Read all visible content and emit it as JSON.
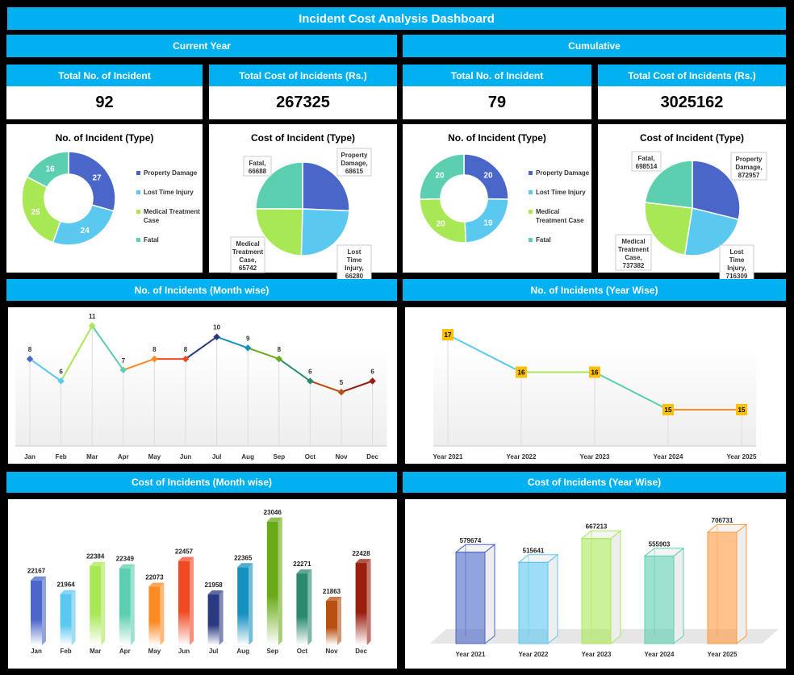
{
  "title": "Incident Cost Analysis Dashboard",
  "sections": {
    "current": "Current Year",
    "cumulative": "Cumulative",
    "month_count": "No. of Incidents (Month wise)",
    "year_count": "No. of Incidents (Year Wise)",
    "month_cost": "Cost of Incidents (Month wise)",
    "year_cost": "Cost of Incidents (Year Wise)"
  },
  "colors": {
    "header": "#00b0f0",
    "property_damage": "#4a66c8",
    "lost_time_injury": "#5bc8f0",
    "medical_treatment_case": "#a9e855",
    "fatal": "#5ccfb0"
  },
  "kpis": [
    {
      "label": "Total No. of Incident",
      "value": "92"
    },
    {
      "label": "Total Cost of Incidents (Rs.)",
      "value": "267325"
    },
    {
      "label": "Total No. of Incident",
      "value": "79"
    },
    {
      "label": "Total Cost of Incidents (Rs.)",
      "value": "3025162"
    }
  ],
  "chart_data": [
    {
      "id": "cur_count",
      "type": "pie",
      "style": "donut",
      "title": "No. of Incident (Type)",
      "categories": [
        "Property Damage",
        "Lost Time Injury",
        "Medical Treatment Case",
        "Fatal"
      ],
      "values": [
        27,
        24,
        25,
        16
      ],
      "legend": "right"
    },
    {
      "id": "cur_cost",
      "type": "pie",
      "title": "Cost of Incident (Type)",
      "categories": [
        "Property Damage",
        "Lost Time Injury",
        "Medical Treatment Case",
        "Fatal"
      ],
      "values": [
        68615,
        66280,
        65742,
        66688
      ],
      "labels": [
        "Property Damage, 68615",
        "Lost Time Injury, 66280",
        "Medical Treatment Case, 65742",
        "Fatal, 66688"
      ]
    },
    {
      "id": "cum_count",
      "type": "pie",
      "style": "donut",
      "title": "No. of Incident (Type)",
      "categories": [
        "Property Damage",
        "Lost Time Injury",
        "Medical Treatment Case",
        "Fatal"
      ],
      "values": [
        20,
        19,
        20,
        20
      ],
      "legend": "right"
    },
    {
      "id": "cum_cost",
      "type": "pie",
      "title": "Cost of Incident (Type)",
      "categories": [
        "Property Damage",
        "Lost Time Injury",
        "Medical Treatment Case",
        "Fatal"
      ],
      "values": [
        872957,
        716309,
        737382,
        698514
      ],
      "labels": [
        "Property Damage, 872957",
        "Lost Time Injury, 716309",
        "Medical Treatment Case, 737382",
        "Fatal, 698514"
      ]
    },
    {
      "id": "month_count",
      "type": "line",
      "categories": [
        "Jan",
        "Feb",
        "Mar",
        "Apr",
        "May",
        "Jun",
        "Jul",
        "Aug",
        "Sep",
        "Oct",
        "Nov",
        "Dec"
      ],
      "values": [
        8,
        6,
        11,
        7,
        8,
        8,
        10,
        9,
        8,
        6,
        5,
        6
      ],
      "grid": false
    },
    {
      "id": "year_count",
      "type": "line",
      "categories": [
        "Year 2021",
        "Year 2022",
        "Year 2023",
        "Year 2024",
        "Year 2025"
      ],
      "values": [
        17,
        16,
        16,
        15,
        15
      ],
      "grid": false
    },
    {
      "id": "month_cost",
      "type": "bar",
      "style": "3d",
      "categories": [
        "Jan",
        "Feb",
        "Mar",
        "Apr",
        "May",
        "Jun",
        "Jul",
        "Aug",
        "Sep",
        "Oct",
        "Nov",
        "Dec"
      ],
      "values": [
        22167,
        21964,
        22384,
        22349,
        22073,
        22457,
        21958,
        22365,
        23046,
        22271,
        21863,
        22428
      ]
    },
    {
      "id": "year_cost",
      "type": "bar",
      "style": "3d",
      "categories": [
        "Year 2021",
        "Year 2022",
        "Year 2023",
        "Year 2024",
        "Year 2025"
      ],
      "values": [
        579674,
        515641,
        667213,
        555903,
        706731
      ]
    }
  ],
  "month_colors": [
    "#4a66c8",
    "#5bc8f0",
    "#a9e855",
    "#5ccfb0",
    "#ff8a22",
    "#f04a25",
    "#2a3a80",
    "#1591c0",
    "#6aaa18",
    "#2a8a70",
    "#b85010",
    "#9a1e0e"
  ],
  "year_colors": [
    "#4a66c8",
    "#5bc8f0",
    "#a9e855",
    "#5ccfb0",
    "#ff9a40"
  ],
  "marker_color": "#ffc000"
}
